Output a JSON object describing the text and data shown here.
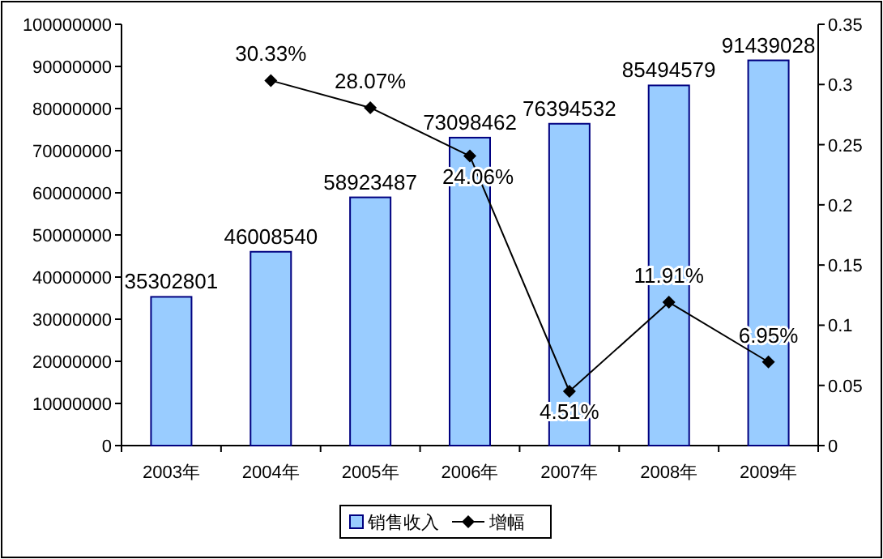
{
  "chart_data": {
    "type": "bar",
    "categories": [
      "2003年",
      "2004年",
      "2005年",
      "2006年",
      "2007年",
      "2008年",
      "2009年"
    ],
    "ylim": [
      0,
      100000000
    ],
    "yticks": [
      0,
      10000000,
      20000000,
      30000000,
      40000000,
      50000000,
      60000000,
      70000000,
      80000000,
      90000000,
      100000000
    ],
    "y2lim": [
      0,
      0.35
    ],
    "y2ticks": [
      0,
      0.05,
      0.1,
      0.15,
      0.2,
      0.25,
      0.3,
      0.35
    ],
    "legend": "bottom",
    "grid": false,
    "series": [
      {
        "name": "销售收入",
        "color": "#99ccff",
        "values": [
          35302801,
          46008540,
          58923487,
          73098462,
          76394532,
          85494579,
          91439028
        ],
        "value_labels": [
          "35302801",
          "46008540",
          "58923487",
          "73098462",
          "76394532",
          "85494579",
          "91439028"
        ]
      },
      {
        "name": "增幅",
        "type": "line",
        "axis": "y2",
        "color": "#000000",
        "marker": "diamond",
        "values": [
          null,
          0.3033,
          0.2807,
          0.2406,
          0.0451,
          0.1191,
          0.0695
        ],
        "value_labels": [
          null,
          "30.33%",
          "28.07%",
          "24.06%",
          "4.51%",
          "11.91%",
          "6.95%"
        ]
      }
    ]
  }
}
